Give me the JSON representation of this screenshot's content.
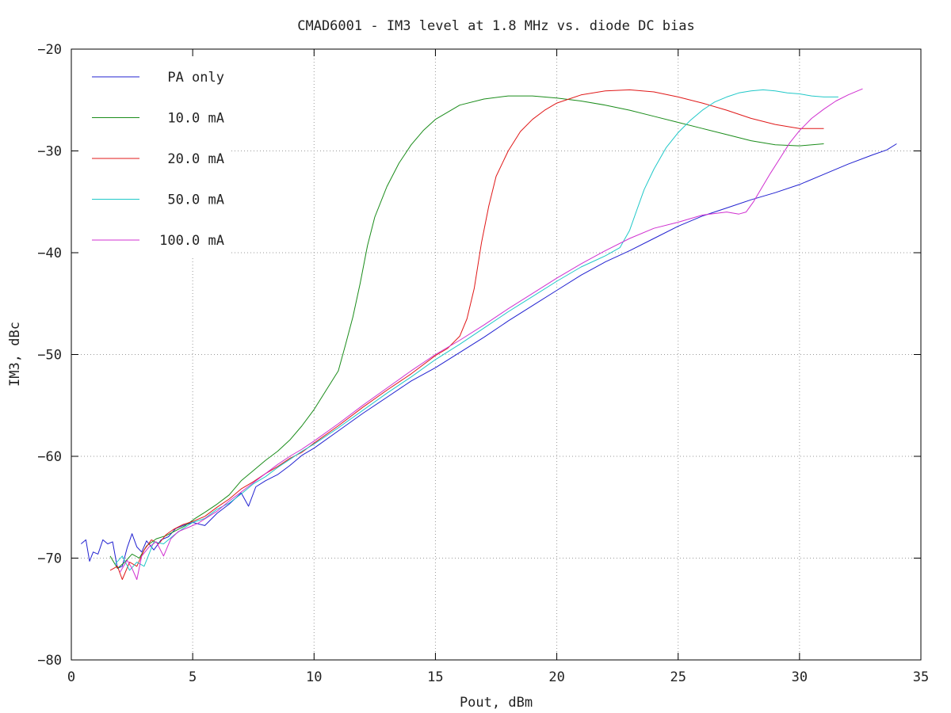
{
  "chart_data": {
    "type": "line",
    "title": "CMAD6001 - IM3 level at 1.8 MHz vs. diode DC bias",
    "xlabel": "Pout, dBm",
    "ylabel": "IM3, dBc",
    "xlim": [
      0,
      35
    ],
    "ylim": [
      -80,
      -20
    ],
    "x_ticks": [
      0,
      5,
      10,
      15,
      20,
      25,
      30,
      35
    ],
    "y_ticks": [
      -80,
      -70,
      -60,
      -50,
      -40,
      -30,
      -20
    ],
    "x_tick_labels": [
      "0",
      "5",
      "10",
      "15",
      "20",
      "25",
      "30",
      "35"
    ],
    "y_tick_labels": [
      "−80",
      "−70",
      "−60",
      "−50",
      "−40",
      "−30",
      "−20"
    ],
    "grid": true,
    "legend_position": "top-left",
    "series": [
      {
        "name": "PA only",
        "color": "#2020d0",
        "x": [
          0.4,
          0.6,
          0.75,
          0.9,
          1.1,
          1.3,
          1.5,
          1.7,
          1.9,
          2.1,
          2.3,
          2.5,
          2.7,
          2.9,
          3.1,
          3.4,
          3.7,
          4.0,
          4.3,
          4.6,
          5.0,
          5.5,
          6.0,
          6.5,
          7.0,
          7.3,
          7.6,
          8.0,
          8.5,
          9.0,
          9.5,
          10.0,
          11.0,
          12.0,
          13.0,
          14.0,
          15.0,
          16.0,
          17.0,
          18.0,
          19.0,
          20.0,
          21.0,
          22.0,
          23.0,
          24.0,
          25.0,
          26.0,
          27.0,
          28.0,
          29.0,
          30.0,
          31.0,
          32.0,
          33.0,
          33.6,
          34.0
        ],
        "y": [
          -68.6,
          -68.2,
          -70.3,
          -69.4,
          -69.6,
          -68.2,
          -68.6,
          -68.4,
          -71.0,
          -70.8,
          -69.0,
          -67.6,
          -68.9,
          -69.4,
          -68.3,
          -69.2,
          -68.2,
          -67.9,
          -67.1,
          -66.8,
          -66.5,
          -66.8,
          -65.6,
          -64.7,
          -63.6,
          -64.9,
          -63.0,
          -62.4,
          -61.8,
          -60.9,
          -59.9,
          -59.2,
          -57.5,
          -55.8,
          -54.2,
          -52.6,
          -51.3,
          -49.8,
          -48.3,
          -46.7,
          -45.2,
          -43.7,
          -42.2,
          -40.9,
          -39.8,
          -38.6,
          -37.4,
          -36.4,
          -35.6,
          -34.8,
          -34.1,
          -33.3,
          -32.3,
          -31.3,
          -30.4,
          -29.9,
          -29.3
        ]
      },
      {
        "name": "10.0 mA",
        "color": "#1a8c1a",
        "x": [
          1.6,
          1.9,
          2.2,
          2.5,
          2.8,
          3.1,
          3.5,
          3.9,
          4.3,
          4.7,
          5.1,
          5.5,
          6.0,
          6.5,
          7.0,
          7.5,
          8.0,
          8.5,
          9.0,
          9.5,
          10.0,
          10.5,
          11.0,
          11.3,
          11.6,
          11.9,
          12.2,
          12.5,
          13.0,
          13.5,
          14.0,
          14.5,
          15.0,
          16.0,
          17.0,
          18.0,
          19.0,
          20.0,
          21.0,
          22.0,
          23.0,
          24.0,
          25.0,
          26.0,
          27.0,
          28.0,
          29.0,
          30.0,
          31.0
        ],
        "y": [
          -69.8,
          -71.0,
          -70.4,
          -69.6,
          -70.0,
          -68.8,
          -68.1,
          -67.8,
          -67.3,
          -66.8,
          -66.1,
          -65.5,
          -64.7,
          -63.8,
          -62.4,
          -61.4,
          -60.4,
          -59.5,
          -58.4,
          -57.0,
          -55.4,
          -53.5,
          -51.6,
          -49.0,
          -46.3,
          -43.0,
          -39.3,
          -36.5,
          -33.5,
          -31.2,
          -29.4,
          -28.0,
          -26.9,
          -25.5,
          -24.9,
          -24.6,
          -24.6,
          -24.8,
          -25.1,
          -25.5,
          -26.0,
          -26.6,
          -27.2,
          -27.8,
          -28.4,
          -29.0,
          -29.4,
          -29.5,
          -29.3
        ]
      },
      {
        "name": "20.0 mA",
        "color": "#e01818",
        "x": [
          1.6,
          1.9,
          2.1,
          2.4,
          2.7,
          3.0,
          3.3,
          3.6,
          3.9,
          4.2,
          4.6,
          5.0,
          5.5,
          6.0,
          6.5,
          7.0,
          7.5,
          8.0,
          8.5,
          9.0,
          9.5,
          10.0,
          11.0,
          12.0,
          13.0,
          14.0,
          15.0,
          15.5,
          16.0,
          16.3,
          16.6,
          16.9,
          17.2,
          17.5,
          18.0,
          18.5,
          19.0,
          19.5,
          20.0,
          20.5,
          21.0,
          22.0,
          23.0,
          24.0,
          25.0,
          26.0,
          27.0,
          28.0,
          29.0,
          30.0,
          31.0
        ],
        "y": [
          -71.2,
          -70.8,
          -72.1,
          -70.4,
          -70.8,
          -69.2,
          -68.2,
          -68.6,
          -67.7,
          -67.2,
          -66.7,
          -66.4,
          -65.9,
          -65.0,
          -64.2,
          -63.2,
          -62.5,
          -61.7,
          -61.0,
          -60.2,
          -59.6,
          -58.7,
          -57.0,
          -55.2,
          -53.5,
          -51.9,
          -50.1,
          -49.4,
          -48.2,
          -46.5,
          -43.5,
          -39.0,
          -35.4,
          -32.5,
          -30.0,
          -28.1,
          -26.9,
          -26.0,
          -25.3,
          -24.9,
          -24.5,
          -24.1,
          -24.0,
          -24.2,
          -24.7,
          -25.3,
          -26.0,
          -26.8,
          -27.4,
          -27.8,
          -27.8
        ]
      },
      {
        "name": "50.0 mA",
        "color": "#20c8c8",
        "x": [
          1.8,
          2.1,
          2.4,
          2.7,
          3.0,
          3.4,
          3.8,
          4.2,
          4.6,
          5.0,
          5.5,
          6.0,
          6.5,
          7.0,
          7.5,
          8.0,
          8.5,
          9.0,
          9.5,
          10.0,
          11.0,
          12.0,
          13.0,
          14.0,
          15.0,
          16.0,
          17.0,
          18.0,
          19.0,
          20.0,
          21.0,
          22.0,
          22.6,
          23.0,
          23.3,
          23.6,
          24.0,
          24.5,
          25.0,
          25.5,
          26.0,
          26.5,
          27.0,
          27.5,
          28.0,
          28.5,
          29.0,
          29.5,
          30.0,
          30.5,
          31.0,
          31.6
        ],
        "y": [
          -70.6,
          -69.8,
          -71.2,
          -70.4,
          -70.8,
          -68.4,
          -68.6,
          -67.8,
          -67.1,
          -66.5,
          -66.1,
          -65.2,
          -64.6,
          -63.7,
          -62.7,
          -62.0,
          -61.1,
          -60.3,
          -59.5,
          -58.8,
          -57.2,
          -55.5,
          -53.8,
          -52.2,
          -50.5,
          -49.0,
          -47.4,
          -45.8,
          -44.3,
          -42.8,
          -41.4,
          -40.3,
          -39.5,
          -37.8,
          -35.8,
          -33.8,
          -31.8,
          -29.7,
          -28.2,
          -27.0,
          -26.0,
          -25.2,
          -24.7,
          -24.3,
          -24.1,
          -24.0,
          -24.1,
          -24.3,
          -24.4,
          -24.6,
          -24.7,
          -24.7
        ]
      },
      {
        "name": "100.0 mA",
        "color": "#d030d0",
        "x": [
          2.0,
          2.3,
          2.5,
          2.7,
          2.9,
          3.2,
          3.5,
          3.8,
          4.1,
          4.4,
          4.8,
          5.2,
          5.6,
          6.0,
          6.5,
          7.0,
          7.5,
          8.0,
          8.5,
          9.0,
          9.5,
          10.0,
          11.0,
          12.0,
          13.0,
          14.0,
          15.0,
          16.0,
          17.0,
          18.0,
          19.0,
          20.0,
          21.0,
          22.0,
          23.0,
          24.0,
          25.0,
          26.0,
          27.0,
          27.5,
          27.8,
          28.1,
          28.4,
          28.8,
          29.2,
          29.6,
          30.0,
          30.5,
          31.0,
          31.5,
          32.0,
          32.6
        ],
        "y": [
          -71.4,
          -70.2,
          -71.0,
          -72.1,
          -69.8,
          -68.9,
          -68.4,
          -69.8,
          -68.1,
          -67.4,
          -67.0,
          -66.6,
          -66.0,
          -65.4,
          -64.4,
          -63.5,
          -62.6,
          -61.7,
          -60.8,
          -60.0,
          -59.3,
          -58.5,
          -56.8,
          -55.0,
          -53.3,
          -51.6,
          -50.0,
          -48.6,
          -47.1,
          -45.5,
          -44.0,
          -42.5,
          -41.1,
          -39.8,
          -38.6,
          -37.6,
          -37.0,
          -36.3,
          -36.0,
          -36.2,
          -36.0,
          -35.0,
          -33.8,
          -32.2,
          -30.7,
          -29.2,
          -28.0,
          -26.8,
          -25.9,
          -25.1,
          -24.5,
          -23.9
        ]
      }
    ]
  }
}
